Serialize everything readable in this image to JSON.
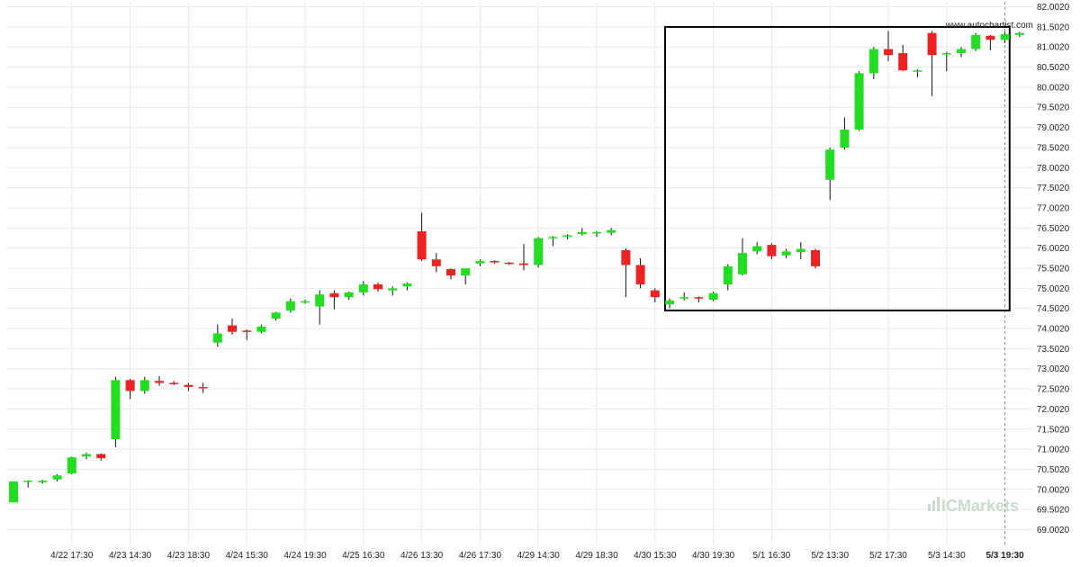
{
  "watermark": {
    "site": "www.autochartist.com",
    "brand": "ICMarkets"
  },
  "colors": {
    "up": "#22dd22",
    "down": "#ee2222",
    "grid": "#e9e9e9",
    "box": "#000000",
    "wick": "#111111",
    "brand": "#c9dccd"
  },
  "chart_data": {
    "type": "candlestick",
    "ylim": [
      68.6,
      82.1
    ],
    "yticks": [
      "82.0020",
      "81.5020",
      "81.0020",
      "80.5020",
      "80.0020",
      "79.5020",
      "79.0020",
      "78.5020",
      "78.0020",
      "77.5020",
      "77.0020",
      "76.5020",
      "76.0020",
      "75.5020",
      "75.0020",
      "74.5020",
      "74.0020",
      "73.5020",
      "73.0020",
      "72.5020",
      "72.0020",
      "71.5020",
      "71.0020",
      "70.5020",
      "70.0020",
      "69.5020",
      "69.0020"
    ],
    "xticks": [
      {
        "label": "4/22 17:30",
        "index": 4
      },
      {
        "label": "4/23 14:30",
        "index": 8
      },
      {
        "label": "4/23 18:30",
        "index": 12
      },
      {
        "label": "4/24 15:30",
        "index": 16
      },
      {
        "label": "4/24 19:30",
        "index": 20
      },
      {
        "label": "4/25 16:30",
        "index": 24
      },
      {
        "label": "4/26 13:30",
        "index": 28
      },
      {
        "label": "4/26 17:30",
        "index": 32
      },
      {
        "label": "4/29 14:30",
        "index": 36
      },
      {
        "label": "4/29 18:30",
        "index": 40
      },
      {
        "label": "4/30 15:30",
        "index": 44
      },
      {
        "label": "4/30 19:30",
        "index": 48
      },
      {
        "label": "5/1 16:30",
        "index": 52
      },
      {
        "label": "5/2 13:30",
        "index": 56
      },
      {
        "label": "5/2 17:30",
        "index": 60
      },
      {
        "label": "5/3 14:30",
        "index": 64
      },
      {
        "label": "5/3 19:30",
        "index": 68,
        "current": true
      }
    ],
    "candles": [
      [
        69.68,
        70.2,
        69.68,
        70.2
      ],
      [
        70.22,
        70.23,
        70.05,
        70.22
      ],
      [
        70.18,
        70.24,
        70.15,
        70.22
      ],
      [
        70.25,
        70.38,
        70.2,
        70.35
      ],
      [
        70.4,
        70.82,
        70.38,
        70.8
      ],
      [
        70.82,
        70.92,
        70.75,
        70.88
      ],
      [
        70.88,
        70.9,
        70.72,
        70.78
      ],
      [
        71.25,
        72.8,
        71.05,
        72.72
      ],
      [
        72.72,
        72.75,
        72.25,
        72.45
      ],
      [
        72.45,
        72.8,
        72.38,
        72.72
      ],
      [
        72.7,
        72.82,
        72.58,
        72.65
      ],
      [
        72.65,
        72.7,
        72.6,
        72.62
      ],
      [
        72.6,
        72.65,
        72.45,
        72.55
      ],
      [
        72.55,
        72.65,
        72.4,
        72.52
      ],
      [
        73.65,
        74.1,
        73.55,
        73.88
      ],
      [
        74.08,
        74.25,
        73.85,
        73.92
      ],
      [
        73.95,
        73.98,
        73.72,
        73.92
      ],
      [
        73.92,
        74.1,
        73.88,
        74.05
      ],
      [
        74.25,
        74.42,
        74.2,
        74.4
      ],
      [
        74.45,
        74.75,
        74.4,
        74.68
      ],
      [
        74.68,
        74.72,
        74.62,
        74.68
      ],
      [
        74.55,
        74.95,
        74.1,
        74.85
      ],
      [
        74.88,
        74.95,
        74.48,
        74.78
      ],
      [
        74.78,
        74.92,
        74.72,
        74.9
      ],
      [
        74.9,
        75.18,
        74.82,
        75.1
      ],
      [
        75.1,
        75.15,
        74.92,
        74.98
      ],
      [
        74.95,
        75.05,
        74.82,
        75.0
      ],
      [
        75.05,
        75.15,
        74.95,
        75.12
      ],
      [
        76.42,
        76.88,
        75.68,
        75.72
      ],
      [
        75.72,
        75.88,
        75.4,
        75.55
      ],
      [
        75.48,
        75.5,
        75.22,
        75.32
      ],
      [
        75.32,
        75.48,
        75.1,
        75.5
      ],
      [
        75.62,
        75.72,
        75.55,
        75.68
      ],
      [
        75.68,
        75.7,
        75.62,
        75.65
      ],
      [
        75.64,
        75.66,
        75.58,
        75.62
      ],
      [
        75.62,
        76.1,
        75.45,
        75.58
      ],
      [
        75.58,
        76.28,
        75.52,
        76.25
      ],
      [
        76.25,
        76.3,
        76.05,
        76.28
      ],
      [
        76.28,
        76.35,
        76.22,
        76.32
      ],
      [
        76.35,
        76.5,
        76.32,
        76.4
      ],
      [
        76.38,
        76.42,
        76.28,
        76.4
      ],
      [
        76.38,
        76.5,
        76.32,
        76.45
      ],
      [
        75.95,
        76.0,
        74.78,
        75.58
      ],
      [
        75.58,
        75.75,
        75.0,
        75.1
      ],
      [
        74.95,
        75.0,
        74.65,
        74.78
      ],
      [
        74.6,
        74.75,
        74.5,
        74.7
      ],
      [
        74.75,
        74.9,
        74.7,
        74.78
      ],
      [
        74.78,
        74.8,
        74.65,
        74.75
      ],
      [
        74.72,
        74.92,
        74.68,
        74.88
      ],
      [
        75.1,
        75.6,
        74.95,
        75.55
      ],
      [
        75.35,
        76.25,
        75.32,
        75.88
      ],
      [
        75.92,
        76.15,
        75.85,
        76.05
      ],
      [
        76.08,
        76.12,
        75.72,
        75.8
      ],
      [
        75.82,
        75.98,
        75.75,
        75.92
      ],
      [
        75.9,
        76.15,
        75.72,
        75.98
      ],
      [
        75.95,
        75.98,
        75.5,
        75.55
      ],
      [
        77.7,
        78.5,
        77.2,
        78.45
      ],
      [
        78.5,
        79.25,
        78.45,
        78.95
      ],
      [
        78.95,
        80.4,
        78.92,
        80.35
      ],
      [
        80.35,
        81.0,
        80.2,
        80.95
      ],
      [
        80.95,
        81.4,
        80.65,
        80.8
      ],
      [
        80.85,
        81.05,
        80.4,
        80.42
      ],
      [
        80.42,
        80.45,
        80.25,
        80.42
      ],
      [
        81.35,
        81.4,
        79.78,
        80.8
      ],
      [
        80.82,
        80.88,
        80.4,
        80.85
      ],
      [
        80.85,
        81.0,
        80.75,
        80.95
      ],
      [
        80.95,
        81.35,
        80.9,
        81.3
      ],
      [
        81.28,
        81.3,
        80.92,
        81.18
      ],
      [
        81.18,
        81.38,
        81.1,
        81.32
      ],
      [
        81.3,
        81.38,
        81.25,
        81.35
      ]
    ],
    "pattern_box": {
      "start_index": 45,
      "end_index": 69,
      "high": 81.5,
      "low": 74.45
    }
  }
}
